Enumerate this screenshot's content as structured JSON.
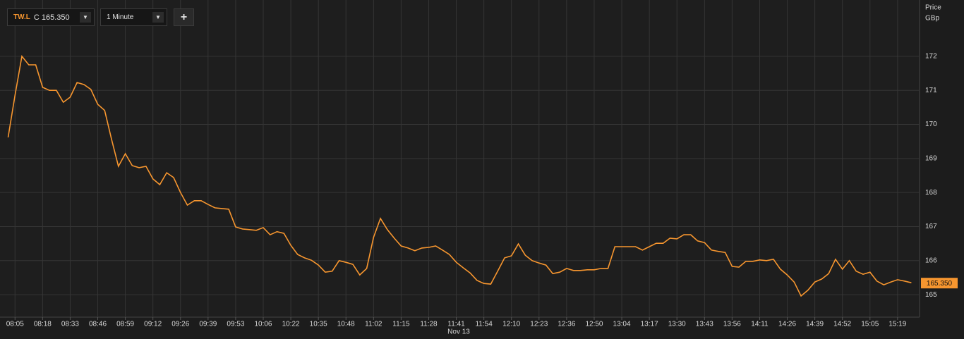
{
  "toolbar": {
    "symbol": "TW.L",
    "quote": "C 165.350",
    "interval": "1 Minute"
  },
  "chart_data": {
    "type": "line",
    "y_label": "Price",
    "y_unit": "GBp",
    "date_label": "Nov 13",
    "categories": [
      null,
      "08:05",
      null,
      null,
      null,
      "08:18",
      null,
      null,
      null,
      "08:33",
      null,
      null,
      null,
      "08:46",
      null,
      null,
      null,
      "08:59",
      null,
      null,
      null,
      "09:12",
      null,
      null,
      null,
      "09:26",
      null,
      null,
      null,
      "09:39",
      null,
      null,
      null,
      "09:53",
      null,
      null,
      null,
      "10:06",
      null,
      null,
      null,
      "10:22",
      null,
      null,
      null,
      "10:35",
      null,
      null,
      null,
      "10:48",
      null,
      null,
      null,
      "11:02",
      null,
      null,
      null,
      "11:15",
      null,
      null,
      null,
      "11:28",
      null,
      null,
      null,
      "11:41",
      null,
      null,
      null,
      "11:54",
      null,
      null,
      null,
      "12:10",
      null,
      null,
      null,
      "12:23",
      null,
      null,
      null,
      "12:36",
      null,
      null,
      null,
      "12:50",
      null,
      null,
      null,
      "13:04",
      null,
      null,
      null,
      "13:17",
      null,
      null,
      null,
      "13:30",
      null,
      null,
      null,
      "13:43",
      null,
      null,
      null,
      "13:56",
      null,
      null,
      null,
      "14:11",
      null,
      null,
      null,
      "14:26",
      null,
      null,
      null,
      "14:39",
      null,
      null,
      null,
      "14:52",
      null,
      null,
      null,
      "15:05",
      null,
      null,
      null,
      "15:19",
      null,
      null
    ],
    "values": [
      169.62,
      170.86,
      172.0,
      171.75,
      171.75,
      171.09,
      171.0,
      171.0,
      170.65,
      170.8,
      171.23,
      171.17,
      171.03,
      170.59,
      170.41,
      169.56,
      168.77,
      169.14,
      168.79,
      168.73,
      168.77,
      168.4,
      168.23,
      168.58,
      168.44,
      168.0,
      167.63,
      167.76,
      167.76,
      167.65,
      167.55,
      167.53,
      167.51,
      166.99,
      166.93,
      166.91,
      166.89,
      166.97,
      166.76,
      166.85,
      166.8,
      166.45,
      166.18,
      166.08,
      166.01,
      165.87,
      165.66,
      165.69,
      166.0,
      165.95,
      165.89,
      165.58,
      165.77,
      166.68,
      167.24,
      166.91,
      166.66,
      166.43,
      166.37,
      166.29,
      166.37,
      166.39,
      166.43,
      166.31,
      166.18,
      165.95,
      165.79,
      165.64,
      165.42,
      165.33,
      165.31,
      165.69,
      166.08,
      166.14,
      166.49,
      166.16,
      166.0,
      165.93,
      165.87,
      165.62,
      165.66,
      165.77,
      165.71,
      165.71,
      165.73,
      165.73,
      165.77,
      165.77,
      166.41,
      166.41,
      166.41,
      166.41,
      166.31,
      166.41,
      166.51,
      166.51,
      166.66,
      166.64,
      166.76,
      166.76,
      166.58,
      166.53,
      166.31,
      166.27,
      166.24,
      165.83,
      165.81,
      165.98,
      165.98,
      166.02,
      166.0,
      166.04,
      165.75,
      165.58,
      165.37,
      164.96,
      165.13,
      165.37,
      165.46,
      165.62,
      166.04,
      165.75,
      166.0,
      165.69,
      165.6,
      165.66,
      165.4,
      165.29,
      165.37,
      165.44,
      165.4,
      165.35
    ],
    "last_label": "165.350",
    "color": "#f7962f",
    "ylim": [
      164.34,
      173.55
    ],
    "yticks": [
      165,
      166,
      167,
      168,
      169,
      170,
      171,
      172
    ],
    "grid": true
  }
}
